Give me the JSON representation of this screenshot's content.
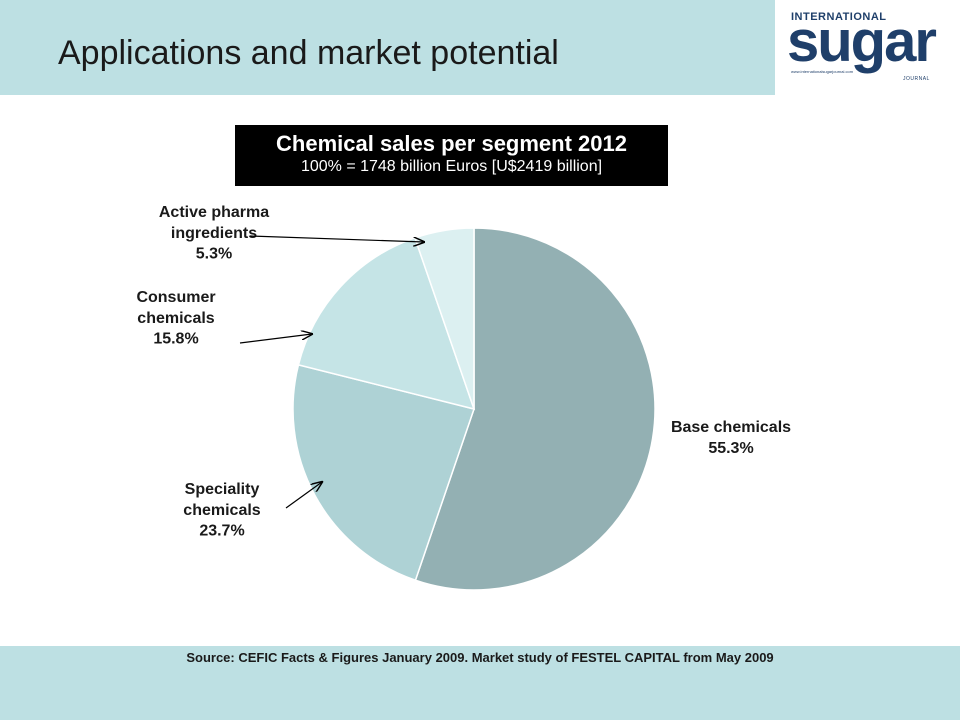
{
  "slide": {
    "title": "Applications and market potential",
    "source": "Source: CEFIC Facts & Figures January 2009. Market study of FESTEL CAPITAL from May 2009"
  },
  "logo": {
    "top_text": "INTERNATIONAL",
    "main_text": "sugar",
    "sub_text": "www.internationalsugarjournal.com",
    "bottom_text": "JOURNAL"
  },
  "colors": {
    "band": "#bde0e3",
    "logo_blue": "#1f3f6a",
    "slice_colors": [
      "#93b0b3",
      "#aed2d5",
      "#c5e4e6",
      "#dcf0f1"
    ]
  },
  "chart_data": {
    "type": "pie",
    "title": "Chemical sales per segment 2012",
    "subtitle": "100% = 1748 billion  Euros [U$2419 billion]",
    "slices": [
      {
        "label_lines": [
          "Base chemicals"
        ],
        "pct_label": "55.3%",
        "value": 55.3
      },
      {
        "label_lines": [
          "Speciality",
          "chemicals"
        ],
        "pct_label": "23.7%",
        "value": 23.7
      },
      {
        "label_lines": [
          "Consumer",
          "chemicals"
        ],
        "pct_label": "15.8%",
        "value": 15.8
      },
      {
        "label_lines": [
          "Active pharma",
          "ingredients"
        ],
        "pct_label": "5.3%",
        "value": 5.3
      }
    ]
  }
}
